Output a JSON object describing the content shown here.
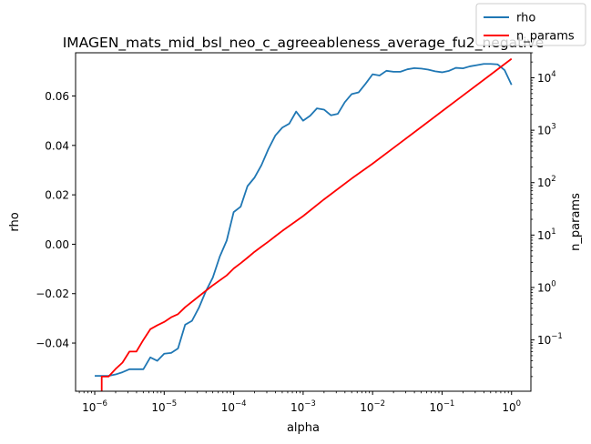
{
  "chart_data": {
    "type": "line",
    "title": "IMAGEN_mats_mid_bsl_neo_c_agreeableness_average_fu2_negative",
    "xlabel": "alpha",
    "ylabel": "rho",
    "y2label": "n_params",
    "xscale": "log",
    "y2scale": "log",
    "xlim": [
      5.3e-07,
      1.9
    ],
    "ylim": [
      -0.0595,
      0.0775
    ],
    "y2lim": [
      0.0105,
      30000
    ],
    "xticks": [
      {
        "value": 1e-06,
        "base": "10",
        "exp": "−6"
      },
      {
        "value": 1e-05,
        "base": "10",
        "exp": "−5"
      },
      {
        "value": 0.0001,
        "base": "10",
        "exp": "−4"
      },
      {
        "value": 0.001,
        "base": "10",
        "exp": "−3"
      },
      {
        "value": 0.01,
        "base": "10",
        "exp": "−2"
      },
      {
        "value": 0.1,
        "base": "10",
        "exp": "−1"
      },
      {
        "value": 1,
        "base": "10",
        "exp": "0"
      }
    ],
    "yticks": [
      {
        "value": -0.04,
        "label": "−0.04"
      },
      {
        "value": -0.02,
        "label": "−0.02"
      },
      {
        "value": 0.0,
        "label": "0.00"
      },
      {
        "value": 0.02,
        "label": "0.02"
      },
      {
        "value": 0.04,
        "label": "0.04"
      },
      {
        "value": 0.06,
        "label": "0.06"
      }
    ],
    "y2ticks": [
      {
        "value": 0.1,
        "base": "10",
        "exp": "−1"
      },
      {
        "value": 1,
        "base": "10",
        "exp": "0"
      },
      {
        "value": 10,
        "base": "10",
        "exp": "1"
      },
      {
        "value": 100,
        "base": "10",
        "exp": "2"
      },
      {
        "value": 1000,
        "base": "10",
        "exp": "3"
      },
      {
        "value": 10000,
        "base": "10",
        "exp": "4"
      }
    ],
    "legend": {
      "placement": "top-right",
      "entries": [
        "rho",
        "n_params"
      ]
    },
    "grid": false,
    "series": [
      {
        "name": "rho",
        "axis": "left",
        "color": "#1f77b4",
        "points": [
          [
            1e-06,
            -0.0533
          ],
          [
            1.26e-06,
            -0.0533
          ],
          [
            1.58e-06,
            -0.0533
          ],
          [
            2e-06,
            -0.0527
          ],
          [
            2.51e-06,
            -0.0518
          ],
          [
            3.16e-06,
            -0.0506
          ],
          [
            3.98e-06,
            -0.0506
          ],
          [
            5.01e-06,
            -0.0506
          ],
          [
            6.31e-06,
            -0.0458
          ],
          [
            7.94e-06,
            -0.0472
          ],
          [
            1e-05,
            -0.0443
          ],
          [
            1.26e-05,
            -0.044
          ],
          [
            1.58e-05,
            -0.0422
          ],
          [
            2e-05,
            -0.0326
          ],
          [
            2.51e-05,
            -0.031
          ],
          [
            3.16e-05,
            -0.0257
          ],
          [
            3.98e-05,
            -0.019
          ],
          [
            5.01e-05,
            -0.0135
          ],
          [
            6.31e-05,
            -0.005
          ],
          [
            7.94e-05,
            0.0015
          ],
          [
            0.0001,
            0.013
          ],
          [
            0.000126,
            0.0152
          ],
          [
            0.000158,
            0.0235
          ],
          [
            0.0002,
            0.027
          ],
          [
            0.000251,
            0.032
          ],
          [
            0.000316,
            0.0385
          ],
          [
            0.000398,
            0.044
          ],
          [
            0.000501,
            0.0472
          ],
          [
            0.000631,
            0.0488
          ],
          [
            0.000794,
            0.0537
          ],
          [
            0.001,
            0.05
          ],
          [
            0.00126,
            0.052
          ],
          [
            0.00158,
            0.055
          ],
          [
            0.002,
            0.0545
          ],
          [
            0.00251,
            0.0522
          ],
          [
            0.00316,
            0.0528
          ],
          [
            0.00398,
            0.0575
          ],
          [
            0.00501,
            0.0608
          ],
          [
            0.00631,
            0.0615
          ],
          [
            0.00794,
            0.065
          ],
          [
            0.01,
            0.0688
          ],
          [
            0.0126,
            0.0683
          ],
          [
            0.0158,
            0.0702
          ],
          [
            0.02,
            0.0698
          ],
          [
            0.0251,
            0.0698
          ],
          [
            0.0316,
            0.0708
          ],
          [
            0.0398,
            0.0713
          ],
          [
            0.0501,
            0.0711
          ],
          [
            0.0631,
            0.0707
          ],
          [
            0.0794,
            0.07
          ],
          [
            0.1,
            0.0696
          ],
          [
            0.126,
            0.0702
          ],
          [
            0.158,
            0.0714
          ],
          [
            0.2,
            0.0712
          ],
          [
            0.251,
            0.072
          ],
          [
            0.316,
            0.0725
          ],
          [
            0.398,
            0.073
          ],
          [
            0.501,
            0.073
          ],
          [
            0.631,
            0.0728
          ],
          [
            0.794,
            0.0705
          ],
          [
            1,
            0.0645
          ]
        ]
      },
      {
        "name": "n_params",
        "axis": "right",
        "color": "#ff0000",
        "points": [
          [
            1.26e-06,
            0.0105
          ],
          [
            1.26e-06,
            0.02
          ],
          [
            1.58e-06,
            0.02
          ],
          [
            2e-06,
            0.028
          ],
          [
            2.51e-06,
            0.037
          ],
          [
            3.16e-06,
            0.06
          ],
          [
            3.98e-06,
            0.06
          ],
          [
            5.01e-06,
            0.1
          ],
          [
            6.31e-06,
            0.16
          ],
          [
            7.94e-06,
            0.19
          ],
          [
            1e-05,
            0.22
          ],
          [
            1.26e-05,
            0.27
          ],
          [
            1.58e-05,
            0.31
          ],
          [
            2e-05,
            0.42
          ],
          [
            3.16e-05,
            0.68
          ],
          [
            5.01e-05,
            1.1
          ],
          [
            7.94e-05,
            1.7
          ],
          [
            0.0001,
            2.3
          ],
          [
            0.000126,
            2.9
          ],
          [
            0.000158,
            3.7
          ],
          [
            0.0002,
            4.8
          ],
          [
            0.000251,
            6.0
          ],
          [
            0.000316,
            7.5
          ],
          [
            0.000398,
            9.5
          ],
          [
            0.000501,
            12
          ],
          [
            0.001,
            23
          ],
          [
            0.002,
            48
          ],
          [
            0.00501,
            120
          ],
          [
            0.01,
            230
          ],
          [
            0.02,
            460
          ],
          [
            0.0501,
            1150
          ],
          [
            0.1,
            2300
          ],
          [
            0.2,
            4600
          ],
          [
            0.501,
            11500
          ],
          [
            1,
            23000
          ]
        ]
      }
    ]
  }
}
